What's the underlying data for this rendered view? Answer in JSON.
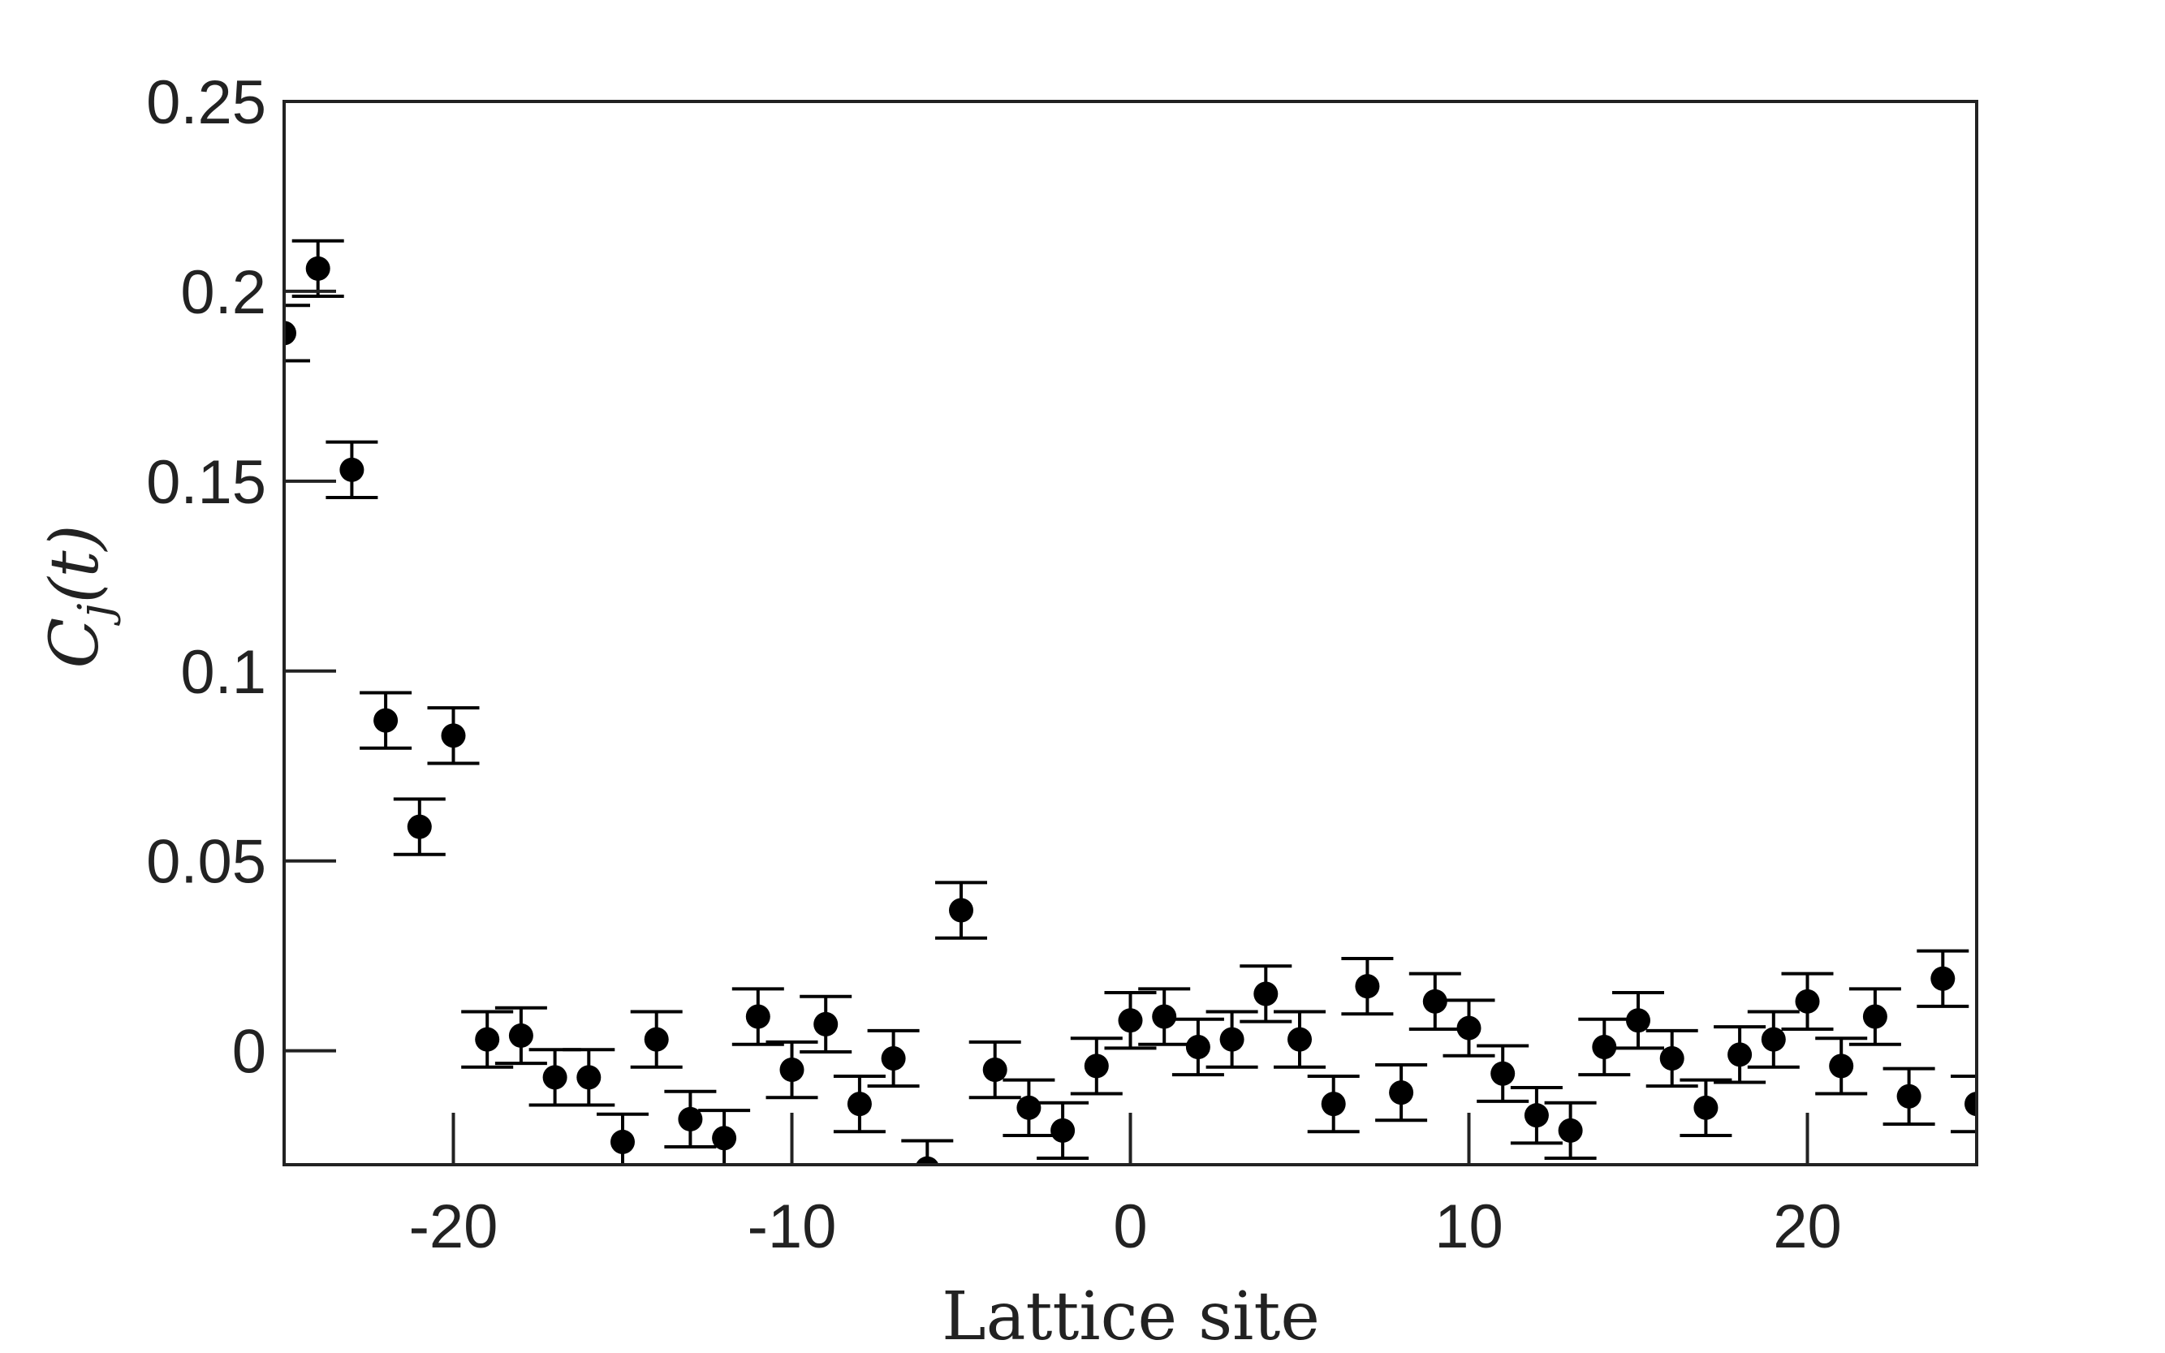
{
  "chart_data": {
    "type": "scatter",
    "xlabel": "Lattice site",
    "ylabel": "C_j(t)",
    "ylabel_parts": {
      "base": "C",
      "sub": "j",
      "arg": "(t)"
    },
    "xlim": [
      -25,
      25
    ],
    "ylim": [
      -0.03,
      0.25
    ],
    "xticks": [
      -20,
      -10,
      0,
      10,
      20
    ],
    "xtick_labels": [
      "-20",
      "-10",
      "0",
      "10",
      "20"
    ],
    "yticks": [
      0,
      0.05,
      0.1,
      0.15,
      0.2,
      0.25
    ],
    "ytick_labels": [
      "0",
      "0.05",
      "0.1",
      "0.15",
      "0.2",
      "0.25"
    ],
    "grid": false,
    "series": [
      {
        "x": [
          -25,
          -24,
          -23,
          -22,
          -21,
          -20,
          -19,
          -18,
          -17,
          -16,
          -15,
          -14,
          -13,
          -12,
          -11,
          -10,
          -9,
          -8,
          -7,
          -6,
          -5,
          -4,
          -3,
          -2,
          -1,
          0,
          1,
          2,
          3,
          4,
          5,
          6,
          7,
          8,
          9,
          10,
          11,
          12,
          13,
          14,
          15,
          16,
          17,
          18,
          19,
          20,
          21,
          22,
          23,
          24,
          25
        ],
        "y": [
          0.189,
          0.206,
          0.153,
          0.087,
          0.059,
          0.083,
          0.003,
          0.004,
          -0.007,
          -0.007,
          -0.024,
          0.003,
          -0.018,
          -0.023,
          0.009,
          -0.005,
          0.007,
          -0.014,
          -0.002,
          -0.031,
          0.037,
          -0.005,
          -0.015,
          -0.021,
          -0.004,
          0.008,
          0.009,
          0.001,
          0.003,
          0.015,
          0.003,
          -0.014,
          0.017,
          -0.011,
          0.013,
          0.006,
          -0.006,
          -0.017,
          -0.021,
          0.001,
          0.008,
          -0.002,
          -0.015,
          -0.001,
          0.003,
          0.013,
          -0.004,
          0.009,
          -0.012,
          0.019,
          -0.014
        ],
        "yerr": 0.0073
      }
    ],
    "colors": {
      "marker": "#000000",
      "axis": "#222222",
      "text": "#222222"
    }
  }
}
